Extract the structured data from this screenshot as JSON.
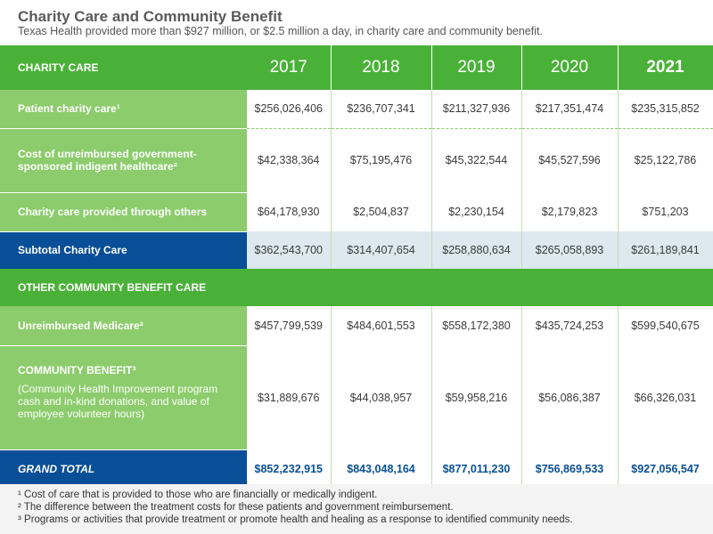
{
  "header": {
    "title": "Charity Care and Community Benefit",
    "subtitle": "Texas Health provided more than $927 million, or $2.5 million a day, in charity care and community benefit."
  },
  "table": {
    "section1_label": "CHARITY CARE",
    "years": [
      "2017",
      "2018",
      "2019",
      "2020",
      "2021"
    ],
    "rows": [
      {
        "label": "Patient charity care¹",
        "values": [
          "$256,026,406",
          "$236,707,341",
          "$211,327,936",
          "$217,351,474",
          "$235,315,852"
        ]
      },
      {
        "label": "Cost of unreimbursed government-sponsored indigent healthcare²",
        "values": [
          "$42,338,364",
          "$75,195,476",
          "$45,322,544",
          "$45,527,596",
          "$25,122,786"
        ]
      },
      {
        "label": "Charity care provided through others",
        "values": [
          "$64,178,930",
          "$2,504,837",
          "$2,230,154",
          "$2,179,823",
          "$751,203"
        ]
      }
    ],
    "subtotal": {
      "label": "Subtotal Charity Care",
      "values": [
        "$362,543,700",
        "$314,407,654",
        "$258,880,634",
        "$265,058,893",
        "$261,189,841"
      ]
    },
    "section2_label": "OTHER COMMUNITY BENEFIT CARE",
    "other_rows": [
      {
        "label": "Unreimbursed Medicare²",
        "values": [
          "$457,799,539",
          "$484,601,553",
          "$558,172,380",
          "$435,724,253",
          "$599,540,675"
        ]
      },
      {
        "label": "COMMUNITY BENEFIT³",
        "description": "(Community Health Improvement program cash and in-kind donations, and value of employee volunteer hours)",
        "values": [
          "$31,889,676",
          "$44,038,957",
          "$59,958,216",
          "$56,086,387",
          "$66,326,031"
        ]
      }
    ],
    "grand_total": {
      "label": "GRAND TOTAL",
      "values": [
        "$852,232,915",
        "$843,048,164",
        "$877,011,230",
        "$756,869,533",
        "$927,056,547"
      ]
    }
  },
  "footnotes": [
    "¹ Cost of care that is provided to those who are financially or medically indigent.",
    "² The difference between the treatment costs for these patients and government reimbursement.",
    "³ Programs or activities that provide treatment or promote health and healing as a response to identified community needs."
  ],
  "colors": {
    "green": "#4ab138",
    "light_green": "#8ccc6c",
    "navy": "#084f97",
    "subtotal_bg": "#dde8ef"
  }
}
